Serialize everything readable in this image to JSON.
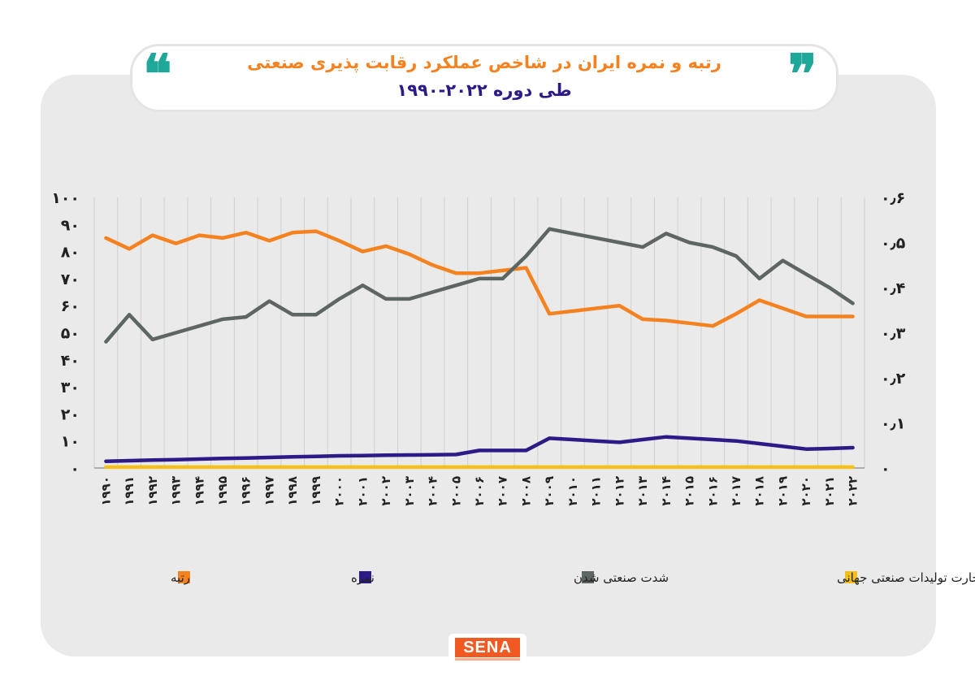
{
  "header": {
    "title_line1": "رتبه و نمره ایران در شاخص عملکرد رقابت پذیری صنعتی",
    "title_line2": "طی دوره ۲۰۲۲-۱۹۹۰",
    "quote_left": "❝",
    "quote_right": "❞"
  },
  "logo": {
    "text": "SENA"
  },
  "colors": {
    "rank": "#f58220",
    "score": "#2e1a87",
    "intensity": "#5e6663",
    "impact": "#f2c018",
    "panel": "#ebeaea",
    "quote": "#1fa89a"
  },
  "chart_data": {
    "type": "line",
    "x": [
      "۱۹۹۰",
      "۱۹۹۱",
      "۱۹۹۲",
      "۱۹۹۳",
      "۱۹۹۴",
      "۱۹۹۵",
      "۱۹۹۶",
      "۱۹۹۷",
      "۱۹۹۸",
      "۱۹۹۹",
      "۲۰۰۰",
      "۲۰۰۱",
      "۲۰۰۲",
      "۲۰۰۳",
      "۲۰۰۴",
      "۲۰۰۵",
      "۲۰۰۶",
      "۲۰۰۷",
      "۲۰۰۸",
      "۲۰۰۹",
      "۲۰۱۰",
      "۲۰۱۱",
      "۲۰۱۲",
      "۲۰۱۳",
      "۲۰۱۴",
      "۲۰۱۵",
      "۲۰۱۶",
      "۲۰۱۷",
      "۲۰۱۸",
      "۲۰۱۹",
      "۲۰۲۰",
      "۲۰۲۱",
      "۲۰۲۲"
    ],
    "left_axis": {
      "ylim": [
        0,
        100
      ],
      "ticks": [
        "۰",
        "۱۰",
        "۲۰",
        "۳۰",
        "۴۰",
        "۵۰",
        "۶۰",
        "۷۰",
        "۸۰",
        "۹۰",
        "۱۰۰"
      ]
    },
    "right_axis": {
      "ylim": [
        0,
        0.6
      ],
      "ticks": [
        "۰",
        "۰٫۱",
        "۰٫۲",
        "۰٫۳",
        "۰٫۴",
        "۰٫۵",
        "۰٫۶"
      ]
    },
    "grid": "vertical",
    "legend_placement": "bottom",
    "series": [
      {
        "name": "رتبه",
        "axis": "left",
        "color": "#f58220",
        "values": [
          85,
          81,
          86,
          83,
          86,
          85,
          87,
          84,
          87,
          87.5,
          84,
          80,
          82,
          79,
          75,
          72,
          72,
          73,
          74,
          57,
          58,
          59,
          60,
          55,
          54.5,
          53.5,
          52.5,
          57,
          62,
          59,
          56,
          56,
          56
        ]
      },
      {
        "name": "شدت صنعتی شدن",
        "axis": "right",
        "color": "#5e6663",
        "values": [
          0.28,
          0.34,
          0.285,
          0.3,
          0.315,
          0.33,
          0.335,
          0.37,
          0.34,
          0.34,
          0.375,
          0.405,
          0.375,
          0.375,
          0.39,
          0.405,
          0.42,
          0.42,
          0.47,
          0.53,
          0.52,
          0.51,
          0.5,
          0.49,
          0.52,
          0.5,
          0.49,
          0.47,
          0.42,
          0.46,
          0.43,
          0.4,
          0.365
        ]
      },
      {
        "name": "نمره",
        "axis": "left",
        "color": "#2e1a87",
        "values": [
          2.5,
          2.7,
          2.9,
          3.1,
          3.3,
          3.5,
          3.7,
          3.9,
          4.1,
          4.3,
          4.5,
          4.6,
          4.7,
          4.8,
          4.9,
          5,
          6.5,
          6.5,
          6.5,
          11,
          10.5,
          10,
          9.5,
          10.5,
          11.5,
          11,
          10.5,
          10,
          9,
          8,
          7,
          7.2,
          7.5
        ]
      },
      {
        "name": "تاثیر بر تجارت تولیدات صنعتی جهانی",
        "axis": "right",
        "color": "#f2c018",
        "values": [
          0.002,
          0.002,
          0.002,
          0.002,
          0.002,
          0.002,
          0.002,
          0.002,
          0.002,
          0.002,
          0.002,
          0.002,
          0.002,
          0.002,
          0.002,
          0.002,
          0.002,
          0.002,
          0.002,
          0.002,
          0.002,
          0.002,
          0.002,
          0.002,
          0.002,
          0.002,
          0.002,
          0.002,
          0.002,
          0.002,
          0.002,
          0.002,
          0.002
        ]
      }
    ],
    "legend": [
      {
        "label": "رتبه",
        "color": "#f58220"
      },
      {
        "label": "نمره",
        "color": "#2e1a87"
      },
      {
        "label": "شدت صنعتی شدن",
        "color": "#5e6663"
      },
      {
        "label": "تاثیر بر تجارت تولیدات صنعتی جهانی",
        "color": "#f2c018"
      }
    ]
  }
}
